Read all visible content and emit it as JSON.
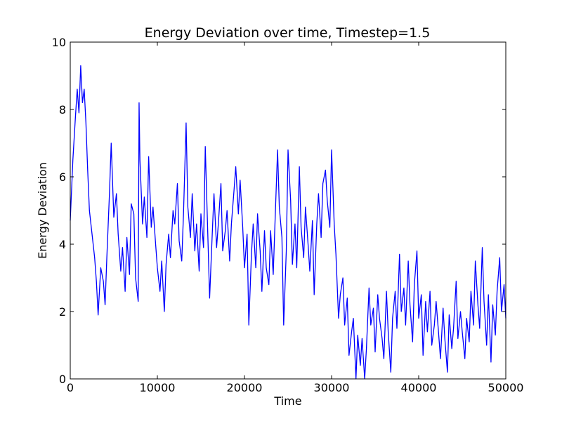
{
  "chart_data": {
    "type": "line",
    "title": "Energy Deviation over time, Timestep=1.5",
    "xlabel": "Time",
    "ylabel": "Energy Deviation",
    "xlim": [
      0,
      50000
    ],
    "ylim": [
      0,
      10
    ],
    "xticks": [
      0,
      10000,
      20000,
      30000,
      40000,
      50000
    ],
    "xtick_labels": [
      "0",
      "10000",
      "20000",
      "30000",
      "40000",
      "50000"
    ],
    "yticks": [
      0,
      2,
      4,
      6,
      8,
      10
    ],
    "ytick_labels": [
      "0",
      "2",
      "4",
      "6",
      "8",
      "10"
    ],
    "grid": false,
    "series": [
      {
        "color": "#0000ff",
        "x": [
          0,
          300,
          600,
          800,
          1000,
          1200,
          1400,
          1600,
          1800,
          2000,
          2200,
          2500,
          2800,
          3000,
          3200,
          3500,
          3800,
          4000,
          4200,
          4500,
          4700,
          5000,
          5300,
          5500,
          5800,
          6000,
          6300,
          6500,
          6800,
          7000,
          7300,
          7500,
          7800,
          7900,
          8000,
          8300,
          8500,
          8800,
          9000,
          9300,
          9500,
          9800,
          10000,
          10300,
          10500,
          10800,
          11000,
          11300,
          11500,
          11800,
          12000,
          12300,
          12500,
          12800,
          13000,
          13300,
          13500,
          13800,
          14000,
          14300,
          14500,
          14800,
          15000,
          15300,
          15500,
          15800,
          16000,
          16300,
          16500,
          16800,
          17000,
          17300,
          17500,
          17800,
          18000,
          18300,
          18500,
          18800,
          19000,
          19300,
          19500,
          19800,
          20000,
          20300,
          20500,
          20800,
          21000,
          21300,
          21500,
          21800,
          22000,
          22300,
          22500,
          22800,
          23000,
          23300,
          23500,
          23800,
          24000,
          24300,
          24500,
          24800,
          25000,
          25300,
          25500,
          25800,
          26000,
          26300,
          26500,
          26800,
          27000,
          27300,
          27500,
          27800,
          28000,
          28300,
          28500,
          28800,
          29000,
          29300,
          29500,
          29800,
          30000,
          30300,
          30500,
          30800,
          31000,
          31300,
          31500,
          31800,
          32000,
          32300,
          32500,
          32800,
          33000,
          33300,
          33500,
          33800,
          34000,
          34300,
          34500,
          34800,
          35000,
          35300,
          35500,
          35800,
          36000,
          36300,
          36500,
          36800,
          37000,
          37300,
          37500,
          37800,
          38000,
          38300,
          38500,
          38800,
          39000,
          39300,
          39500,
          39800,
          40000,
          40300,
          40500,
          40800,
          41000,
          41300,
          41500,
          41800,
          42000,
          42300,
          42500,
          42800,
          43000,
          43300,
          43500,
          43800,
          44000,
          44300,
          44500,
          44800,
          45000,
          45300,
          45500,
          45800,
          46000,
          46300,
          46500,
          46800,
          47000,
          47300,
          47500,
          47800,
          48000,
          48300,
          48500,
          48800,
          49000,
          49300,
          49500,
          49800,
          50000
        ],
        "y": [
          4.7,
          6.5,
          7.8,
          8.6,
          7.9,
          9.3,
          8.2,
          8.6,
          7.6,
          6.2,
          5.0,
          4.3,
          3.6,
          2.9,
          1.9,
          3.3,
          2.9,
          2.2,
          3.6,
          5.5,
          7.0,
          4.8,
          5.5,
          4.3,
          3.2,
          3.9,
          2.6,
          4.2,
          3.1,
          5.2,
          4.9,
          3.0,
          2.3,
          8.2,
          6.5,
          4.6,
          5.4,
          4.2,
          6.6,
          4.5,
          5.1,
          4.0,
          3.3,
          2.6,
          3.5,
          2.0,
          3.4,
          4.3,
          3.6,
          5.0,
          4.6,
          5.8,
          4.1,
          3.5,
          4.9,
          7.6,
          5.1,
          4.2,
          5.5,
          3.8,
          4.6,
          3.2,
          4.9,
          3.9,
          6.9,
          4.2,
          2.4,
          4.3,
          5.5,
          3.9,
          4.6,
          5.8,
          3.8,
          4.4,
          5.0,
          3.5,
          4.6,
          5.6,
          6.3,
          4.9,
          5.9,
          4.5,
          3.3,
          4.3,
          1.6,
          3.7,
          4.6,
          3.3,
          4.9,
          3.8,
          2.6,
          4.4,
          3.3,
          2.8,
          4.4,
          3.1,
          4.6,
          6.8,
          5.1,
          4.2,
          1.6,
          3.8,
          6.8,
          5.3,
          3.4,
          4.6,
          3.3,
          6.3,
          4.5,
          3.6,
          5.1,
          4.0,
          3.2,
          4.7,
          2.5,
          4.6,
          5.5,
          4.2,
          5.8,
          6.2,
          5.3,
          4.5,
          6.8,
          4.6,
          3.7,
          1.8,
          2.5,
          3.0,
          1.6,
          2.4,
          0.7,
          1.4,
          1.8,
          0.0,
          1.3,
          0.4,
          1.2,
          0.0,
          0.9,
          2.7,
          1.6,
          2.1,
          0.8,
          2.5,
          1.8,
          1.2,
          0.6,
          2.6,
          1.4,
          0.2,
          1.8,
          2.6,
          1.5,
          3.7,
          2.0,
          2.7,
          1.6,
          3.5,
          2.2,
          1.1,
          2.8,
          3.8,
          1.8,
          2.5,
          0.7,
          2.3,
          1.4,
          2.6,
          1.0,
          1.6,
          2.3,
          1.3,
          0.6,
          2.1,
          1.2,
          0.2,
          1.9,
          0.9,
          1.5,
          2.9,
          1.2,
          2.0,
          1.4,
          0.6,
          1.8,
          1.1,
          2.6,
          1.6,
          3.5,
          2.2,
          1.5,
          3.9,
          2.3,
          1.0,
          2.5,
          0.5,
          2.2,
          1.3,
          2.6,
          3.6,
          2.0,
          2.8,
          1.8
        ]
      }
    ]
  }
}
